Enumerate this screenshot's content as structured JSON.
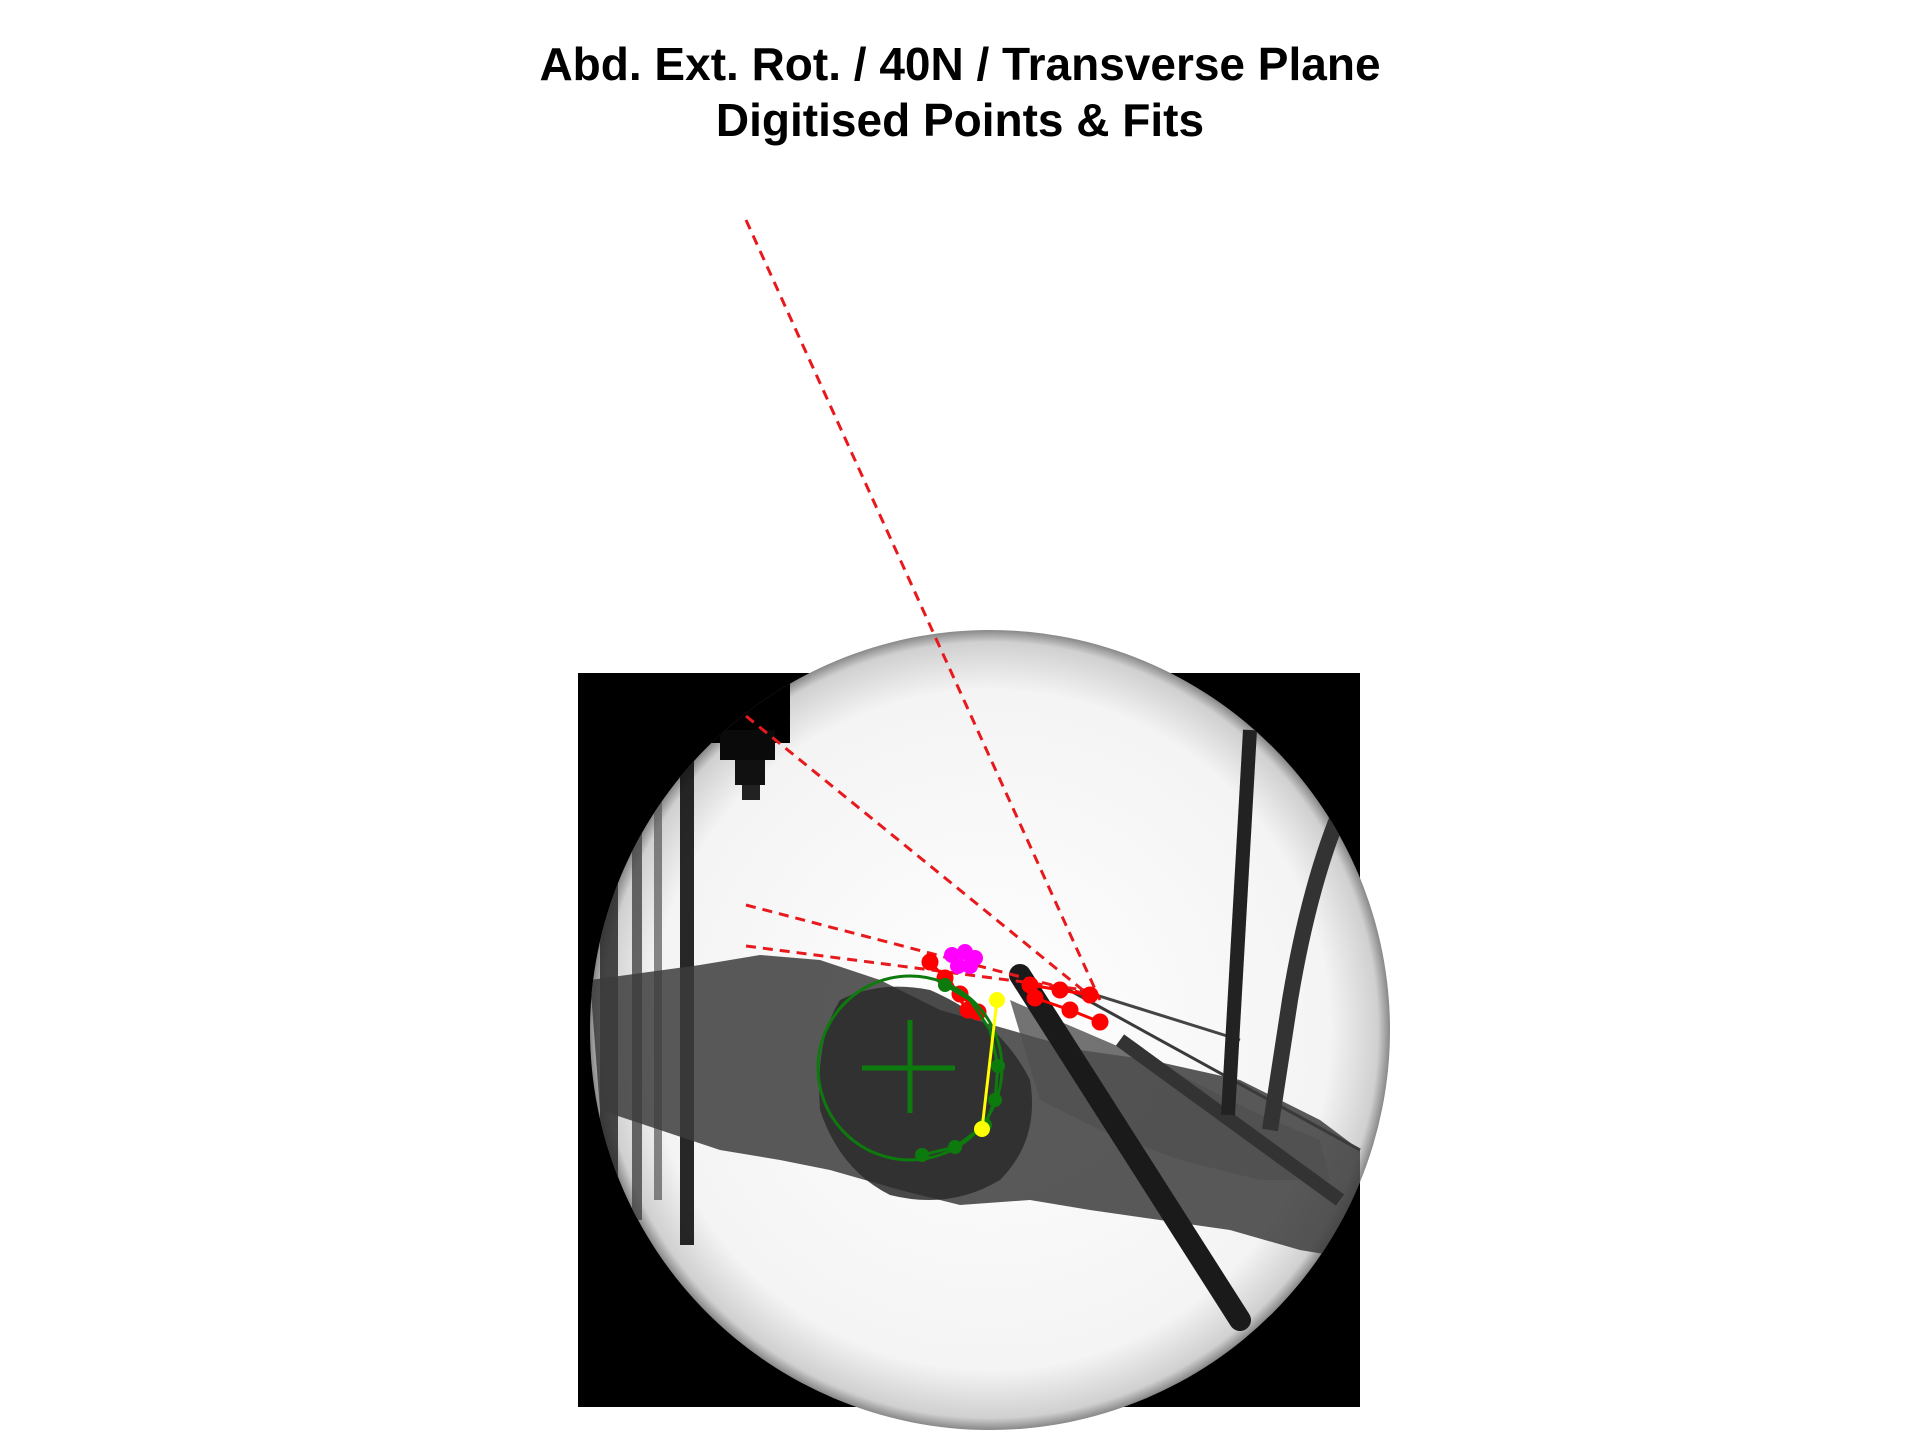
{
  "title": {
    "line1": "Abd. Ext. Rot. / 40N / Transverse Plane",
    "line2": "Digitised Points & Fits"
  },
  "colors": {
    "background": "#ffffff",
    "xray_black": "#000000",
    "fit_lines": "#e8191c",
    "digitised_red": "#ff0000",
    "humeral_head": "#0d7a0d",
    "yellow_segment": "#ffff00",
    "magenta_points": "#ff00ff"
  }
}
